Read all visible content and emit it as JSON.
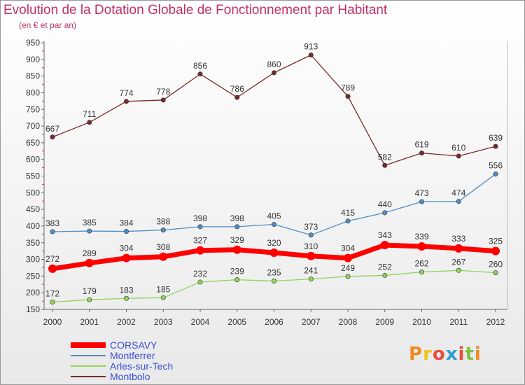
{
  "header": {
    "title": "Evolution de la Dotation Globale de Fonctionnement par Habitant",
    "subtitle": "(en € et par an)"
  },
  "logo": {
    "text": "Proxiti",
    "colors": [
      "#f08a24",
      "#f0c419",
      "#e94e3c",
      "#2a9fd6",
      "#e94e3c",
      "#7dc242",
      "#f08a24"
    ]
  },
  "chart_data": {
    "type": "line",
    "title": "Evolution de la Dotation Globale de Fonctionnement par Habitant",
    "subtitle": "(en € et par an)",
    "xlabel": "",
    "ylabel": "",
    "x": [
      2000,
      2001,
      2002,
      2003,
      2004,
      2005,
      2006,
      2007,
      2008,
      2009,
      2010,
      2011,
      2012
    ],
    "ylim": [
      150,
      950
    ],
    "yticks": [
      150,
      200,
      250,
      300,
      350,
      400,
      450,
      500,
      550,
      600,
      650,
      700,
      750,
      800,
      850,
      900,
      950
    ],
    "grid": false,
    "legend": "bottom-left",
    "series": [
      {
        "name": "CORSAVY",
        "color": "#ff0000",
        "emphasis": true,
        "values": [
          272,
          289,
          304,
          308,
          327,
          329,
          320,
          310,
          304,
          343,
          339,
          333,
          325
        ]
      },
      {
        "name": "Montferrer",
        "color": "#4f8ec6",
        "values": [
          383,
          385,
          384,
          388,
          398,
          398,
          405,
          373,
          415,
          440,
          473,
          474,
          556
        ]
      },
      {
        "name": "Arles-sur-Tech",
        "color": "#8fd45a",
        "values": [
          172,
          179,
          183,
          185,
          232,
          239,
          235,
          241,
          249,
          252,
          262,
          267,
          260
        ]
      },
      {
        "name": "Montbolo",
        "color": "#7a2a2a",
        "values": [
          667,
          711,
          774,
          778,
          856,
          786,
          860,
          913,
          789,
          582,
          619,
          610,
          639
        ]
      }
    ]
  }
}
